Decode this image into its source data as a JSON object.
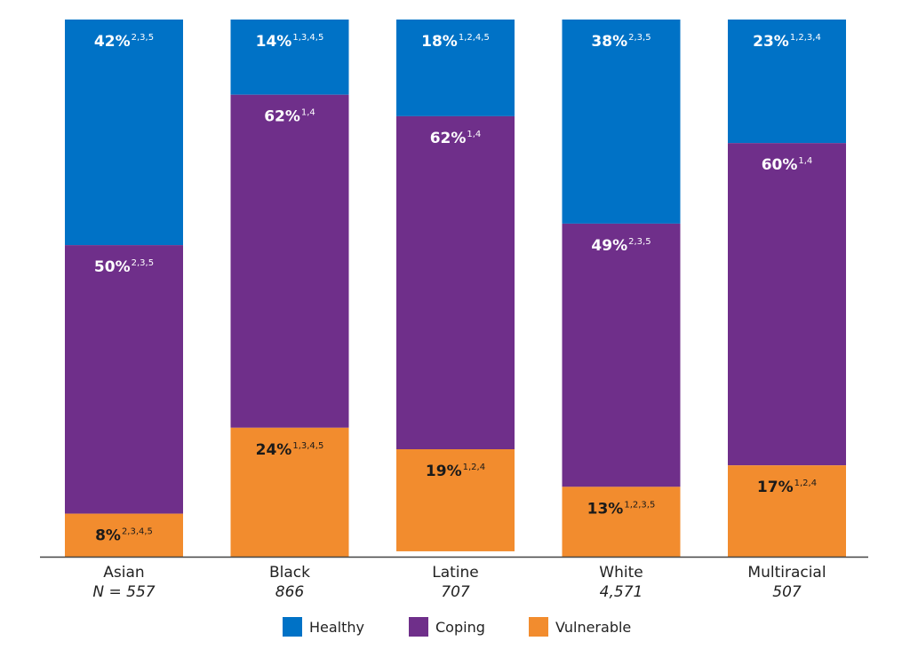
{
  "chart_data": {
    "type": "bar",
    "stacked": true,
    "normalized_percent": true,
    "legend_position": "bottom-center",
    "grid": false,
    "categories": [
      "Asian",
      "Black",
      "Latine",
      "White",
      "Multiracial"
    ],
    "n_labels": [
      "N = 557",
      "866",
      "707",
      "4,571",
      "507"
    ],
    "series": [
      {
        "name": "Healthy",
        "color": "#0072C6",
        "values": [
          42,
          14,
          18,
          38,
          23
        ],
        "labels": [
          "42%",
          "14%",
          "18%",
          "38%",
          "23%"
        ],
        "superscripts": [
          "2,3,5",
          "1,3,4,5",
          "1,2,4,5",
          "2,3,5",
          "1,2,3,4"
        ]
      },
      {
        "name": "Coping",
        "color": "#6F2F8A",
        "values": [
          50,
          62,
          62,
          49,
          60
        ],
        "labels": [
          "50%",
          "62%",
          "62%",
          "49%",
          "60%"
        ],
        "superscripts": [
          "2,3,5",
          "1,4",
          "1,4",
          "2,3,5",
          "1,4"
        ]
      },
      {
        "name": "Vulnerable",
        "color": "#F28C2E",
        "values": [
          8,
          24,
          19,
          13,
          17
        ],
        "labels": [
          "8%",
          "24%",
          "19%",
          "13%",
          "17%"
        ],
        "superscripts": [
          "2,3,4,5",
          "1,3,4,5",
          "1,2,4",
          "1,2,3,5",
          "1,2,4"
        ]
      }
    ],
    "label_colors": {
      "Healthy": "#ffffff",
      "Coping": "#ffffff",
      "Vulnerable": "#1a1a1a"
    },
    "axis_color": "#444444"
  }
}
